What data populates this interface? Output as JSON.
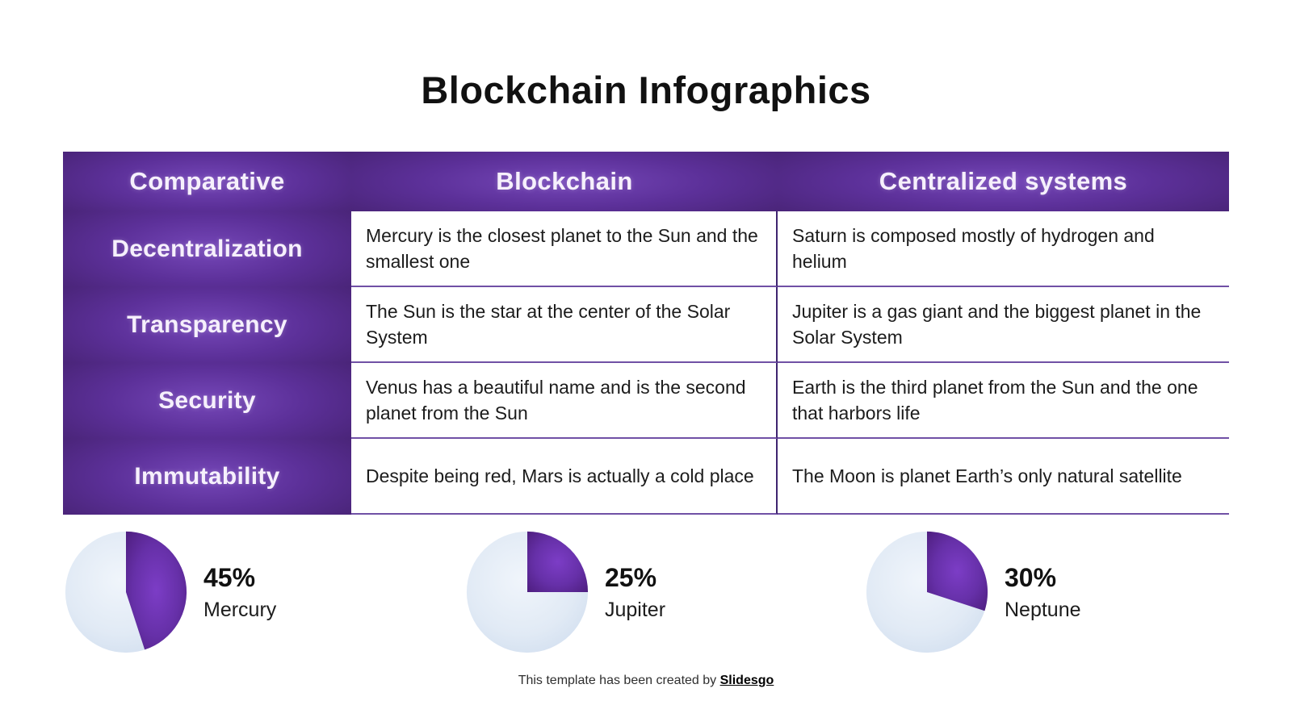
{
  "slide": {
    "title": "Blockchain Infographics",
    "footer": {
      "prefix": "This template has been created by ",
      "brand": "Slidesgo"
    }
  },
  "table": {
    "headers": [
      "Comparative",
      "Blockchain",
      "Centralized systems"
    ],
    "rows": [
      {
        "label": "Decentralization",
        "blockchain": "Mercury is the closest planet to the Sun and the smallest one",
        "centralized": "Saturn is composed mostly of hydrogen and helium"
      },
      {
        "label": "Transparency",
        "blockchain": "The Sun is the star at the center of the Solar System",
        "centralized": "Jupiter is a gas giant and the biggest planet in the Solar System"
      },
      {
        "label": "Security",
        "blockchain": "Venus has a beautiful name and is the second planet from the Sun",
        "centralized": "Earth is the third planet from the Sun and the one that harbors life"
      },
      {
        "label": "Immutability",
        "blockchain": "Despite being red, Mars is actually a cold place",
        "centralized": "The Moon is planet Earth’s only natural satellite"
      }
    ]
  },
  "chart_data": [
    {
      "type": "pie",
      "label": "Mercury",
      "percent_label": "45%",
      "values": [
        45,
        55
      ],
      "slice_names": [
        "highlight",
        "remainder"
      ],
      "legend_position": "right"
    },
    {
      "type": "pie",
      "label": "Jupiter",
      "percent_label": "25%",
      "values": [
        25,
        75
      ],
      "slice_names": [
        "highlight",
        "remainder"
      ],
      "legend_position": "right"
    },
    {
      "type": "pie",
      "label": "Neptune",
      "percent_label": "30%",
      "values": [
        30,
        70
      ],
      "slice_names": [
        "highlight",
        "remainder"
      ],
      "legend_position": "right"
    }
  ],
  "colors": {
    "header_purple_center": "#7547b8",
    "header_purple_edge": "#462272",
    "pie_purple_center": "#7c3dc6",
    "pie_purple_edge": "#4e1e7f",
    "pie_light_center": "#f0f5fb",
    "pie_light_edge": "#cedcee",
    "column_divider": "#3f2470",
    "row_line": "#7050a5",
    "title_text": "#111111"
  }
}
